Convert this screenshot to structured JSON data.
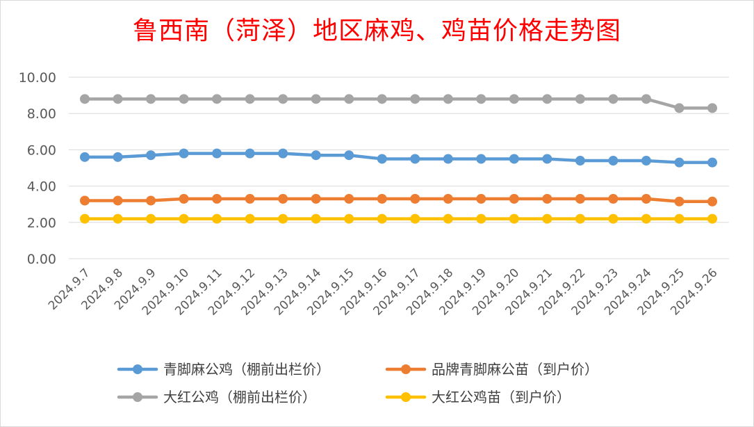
{
  "chart_data": {
    "type": "line",
    "title": "鲁西南（菏泽）地区麻鸡、鸡苗价格走势图",
    "xlabel": "",
    "ylabel": "",
    "ylim": [
      0,
      10
    ],
    "yticks": [
      "0.00",
      "2.00",
      "4.00",
      "6.00",
      "8.00",
      "10.00"
    ],
    "grid": true,
    "legend_position": "bottom",
    "categories": [
      "2024.9.7",
      "2024.9.8",
      "2024.9.9",
      "2024.9.10",
      "2024.9.11",
      "2024.9.12",
      "2024.9.13",
      "2024.9.14",
      "2024.9.15",
      "2024.9.16",
      "2024.9.17",
      "2024.9.18",
      "2024.9.19",
      "2024.9.20",
      "2024.9.21",
      "2024.9.22",
      "2024.9.23",
      "2024.9.24",
      "2024.9.25",
      "2024.9.26"
    ],
    "series": [
      {
        "name": "青脚麻公鸡（棚前出栏价）",
        "color": "#5b9bd5",
        "values": [
          5.6,
          5.6,
          5.7,
          5.8,
          5.8,
          5.8,
          5.8,
          5.7,
          5.7,
          5.5,
          5.5,
          5.5,
          5.5,
          5.5,
          5.5,
          5.4,
          5.4,
          5.4,
          5.3,
          5.3
        ]
      },
      {
        "name": "品牌青脚麻公苗（到户价）",
        "color": "#ed7d31",
        "values": [
          3.2,
          3.2,
          3.2,
          3.3,
          3.3,
          3.3,
          3.3,
          3.3,
          3.3,
          3.3,
          3.3,
          3.3,
          3.3,
          3.3,
          3.3,
          3.3,
          3.3,
          3.3,
          3.15,
          3.15
        ]
      },
      {
        "name": "大红公鸡（棚前出栏价）",
        "color": "#a5a5a5",
        "values": [
          8.8,
          8.8,
          8.8,
          8.8,
          8.8,
          8.8,
          8.8,
          8.8,
          8.8,
          8.8,
          8.8,
          8.8,
          8.8,
          8.8,
          8.8,
          8.8,
          8.8,
          8.8,
          8.3,
          8.3
        ]
      },
      {
        "name": "大红公鸡苗（到户价）",
        "color": "#ffc000",
        "values": [
          2.2,
          2.2,
          2.2,
          2.2,
          2.2,
          2.2,
          2.2,
          2.2,
          2.2,
          2.2,
          2.2,
          2.2,
          2.2,
          2.2,
          2.2,
          2.2,
          2.2,
          2.2,
          2.2,
          2.2
        ]
      }
    ]
  }
}
